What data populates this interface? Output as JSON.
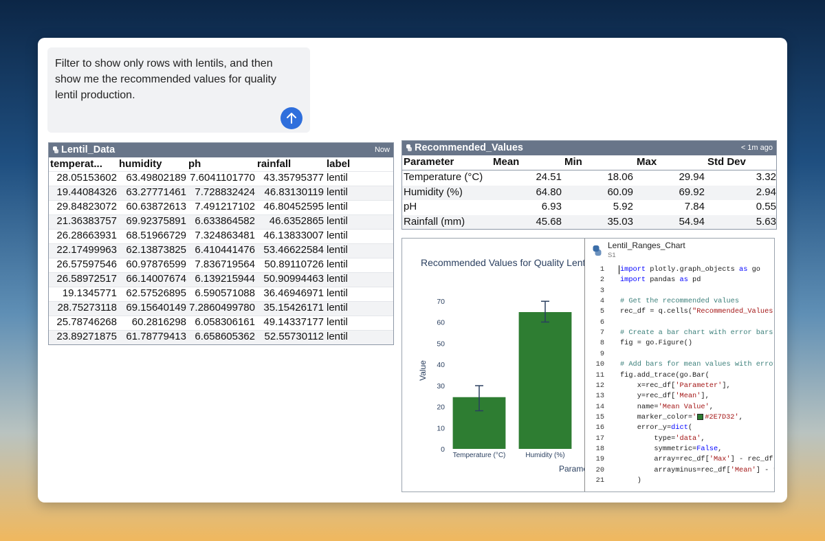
{
  "prompt": {
    "text": "Filter to show only rows with lentils, and then show me the recommended values for quality lentil production."
  },
  "lentil_data": {
    "title": "Lentil_Data",
    "timestamp": "Now",
    "columns": [
      "temperat...",
      "humidity",
      "ph",
      "rainfall",
      "label"
    ],
    "rows": [
      [
        "28.05153602",
        "63.49802189",
        "7.6041101770",
        "43.35795377",
        "lentil"
      ],
      [
        "19.44084326",
        "63.27771461",
        "7.728832424",
        "46.83130119",
        "lentil"
      ],
      [
        "29.84823072",
        "60.63872613",
        "7.491217102",
        "46.80452595",
        "lentil"
      ],
      [
        "21.36383757",
        "69.92375891",
        "6.633864582",
        "46.6352865",
        "lentil"
      ],
      [
        "26.28663931",
        "68.51966729",
        "7.324863481",
        "46.13833007",
        "lentil"
      ],
      [
        "22.17499963",
        "62.13873825",
        "6.410441476",
        "53.46622584",
        "lentil"
      ],
      [
        "26.57597546",
        "60.97876599",
        "7.836719564",
        "50.89110726",
        "lentil"
      ],
      [
        "26.58972517",
        "66.14007674",
        "6.139215944",
        "50.90994463",
        "lentil"
      ],
      [
        "19.1345771",
        "62.57526895",
        "6.590571088",
        "36.46946971",
        "lentil"
      ],
      [
        "28.75273118",
        "69.15640149",
        "7.2860499780",
        "35.15426171",
        "lentil"
      ],
      [
        "25.78746268",
        "60.2816298",
        "6.058306161",
        "49.14337177",
        "lentil"
      ],
      [
        "23.89271875",
        "61.78779413",
        "6.658605362",
        "52.55730112",
        "lentil"
      ]
    ]
  },
  "recommended_values": {
    "title": "Recommended_Values",
    "timestamp": "< 1m ago",
    "columns": [
      "Parameter",
      "Mean",
      "Min",
      "Max",
      "Std Dev"
    ],
    "rows": [
      [
        "Temperature (°C)",
        "24.51",
        "18.06",
        "29.94",
        "3.32"
      ],
      [
        "Humidity (%)",
        "64.80",
        "60.09",
        "69.92",
        "2.94"
      ],
      [
        "pH",
        "6.93",
        "5.92",
        "7.84",
        "0.55"
      ],
      [
        "Rainfall (mm)",
        "45.68",
        "35.03",
        "54.94",
        "5.63"
      ]
    ]
  },
  "chart_data": {
    "type": "bar",
    "title": "Recommended Values for Quality Lentil Production",
    "categories": [
      "Temperature (°C)",
      "Humidity (%)"
    ],
    "values": [
      24.51,
      64.8
    ],
    "error_max": [
      29.94,
      69.92
    ],
    "error_min": [
      18.06,
      60.09
    ],
    "color": "#2E7D32",
    "ylabel": "Value",
    "xlabel": "Parameter",
    "ylim": [
      0,
      75
    ],
    "yticks": [
      0,
      10,
      20,
      30,
      40,
      50,
      60,
      70
    ]
  },
  "code_panel": {
    "title": "Lentil_Ranges_Chart",
    "subtitle": "S1",
    "lines": [
      {
        "number": 1,
        "code": "import plotly.graph_objects as go"
      },
      {
        "number": 2,
        "code": "import pandas as pd"
      },
      {
        "number": 3
      },
      {
        "number": 4,
        "code": "# Get the recommended values"
      },
      {
        "number": 5,
        "code": "rec_df = q.cells(\"Recommended_Values\")"
      },
      {
        "number": 6
      },
      {
        "number": 7,
        "code": "# Create a bar chart with error bars"
      },
      {
        "number": 8,
        "code": "fig = go.Figure()"
      },
      {
        "number": 9
      },
      {
        "number": 10,
        "code": "# Add bars for mean values with error bars"
      },
      {
        "number": 11,
        "code": "fig.add_trace(go.Bar("
      },
      {
        "number": 12,
        "code": "    x=rec_df['Parameter'],"
      },
      {
        "number": 13,
        "code": "    y=rec_df['Mean'],"
      },
      {
        "number": 14,
        "code": "    name='Mean Value',"
      },
      {
        "number": 15,
        "code": "    marker_color='#2E7D32',"
      },
      {
        "number": 16,
        "code": "    error_y=dict("
      },
      {
        "number": 17,
        "code": "        type='data',"
      },
      {
        "number": 18,
        "code": "        symmetric=False,"
      },
      {
        "number": 19,
        "code": "        array=rec_df['Max'] - rec_df['Mean'],"
      },
      {
        "number": 20,
        "code": "        arrayminus=rec_df['Mean'] - rec_df['Min']"
      },
      {
        "number": 21,
        "code": "    )"
      }
    ]
  }
}
